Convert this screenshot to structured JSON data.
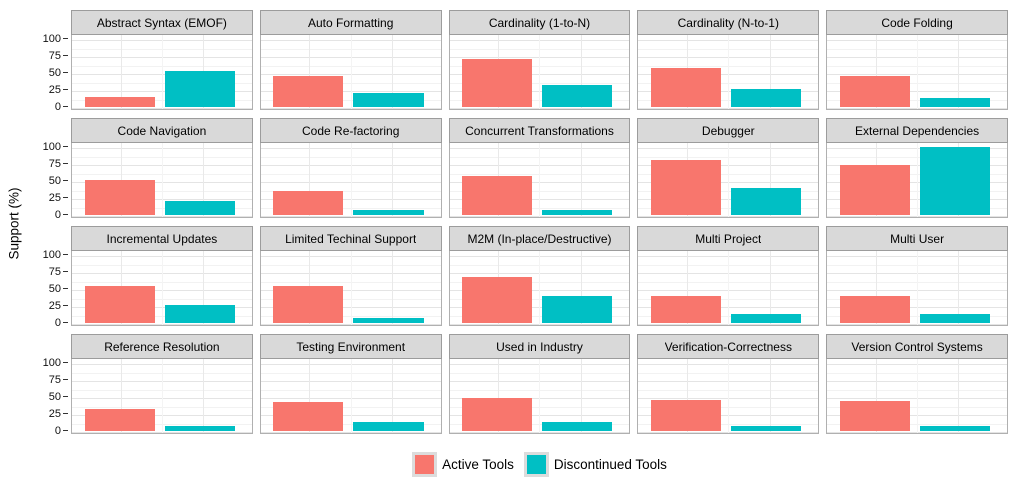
{
  "figure": {
    "ylabel": "Support (%)",
    "yticks": [
      0,
      25,
      50,
      75,
      100
    ],
    "legend": [
      {
        "label": "Active Tools",
        "color": "#F8766D"
      },
      {
        "label": "Discontinued Tools",
        "color": "#00BFC4"
      }
    ]
  },
  "chart_data": {
    "type": "bar",
    "layout": "faceted 4x5 grid, grouped bars, legend at bottom, no x tick labels",
    "ylabel": "Support (%)",
    "ylim": [
      0,
      100
    ],
    "yticks": [
      0,
      25,
      50,
      75,
      100
    ],
    "grid": "major and minor horizontal gridlines, light gray on white panels",
    "series_names": [
      "Active Tools",
      "Discontinued Tools"
    ],
    "colors": {
      "active": "#F8766D",
      "discontinued": "#00BFC4"
    },
    "facets": [
      {
        "title": "Abstract Syntax (EMOF)",
        "active": 15,
        "discontinued": 53
      },
      {
        "title": "Auto Formatting",
        "active": 46,
        "discontinued": 20
      },
      {
        "title": "Cardinality (1-to-N)",
        "active": 70,
        "discontinued": 33
      },
      {
        "title": "Cardinality (N-to-1)",
        "active": 58,
        "discontinued": 27
      },
      {
        "title": "Code Folding",
        "active": 45,
        "discontinued": 13
      },
      {
        "title": "Code Navigation",
        "active": 52,
        "discontinued": 20
      },
      {
        "title": "Code Re-factoring",
        "active": 35,
        "discontinued": 7
      },
      {
        "title": "Concurrent Transformations",
        "active": 58,
        "discontinued": 7
      },
      {
        "title": "Debugger",
        "active": 81,
        "discontinued": 40
      },
      {
        "title": "External Dependencies",
        "active": 73,
        "discontinued": 100
      },
      {
        "title": "Incremental Updates",
        "active": 54,
        "discontinued": 27
      },
      {
        "title": "Limited Techinal Support",
        "active": 54,
        "discontinued": 7
      },
      {
        "title": "M2M (In-place/Destructive)",
        "active": 68,
        "discontinued": 40
      },
      {
        "title": "Multi Project",
        "active": 39,
        "discontinued": 13
      },
      {
        "title": "Multi User",
        "active": 39,
        "discontinued": 13
      },
      {
        "title": "Reference Resolution",
        "active": 32,
        "discontinued": 7
      },
      {
        "title": "Testing Environment",
        "active": 42,
        "discontinued": 13
      },
      {
        "title": "Used in Industry",
        "active": 48,
        "discontinued": 13
      },
      {
        "title": "Verification-Correctness",
        "active": 46,
        "discontinued": 7
      },
      {
        "title": "Version Control Systems",
        "active": 44,
        "discontinued": 7
      }
    ]
  }
}
